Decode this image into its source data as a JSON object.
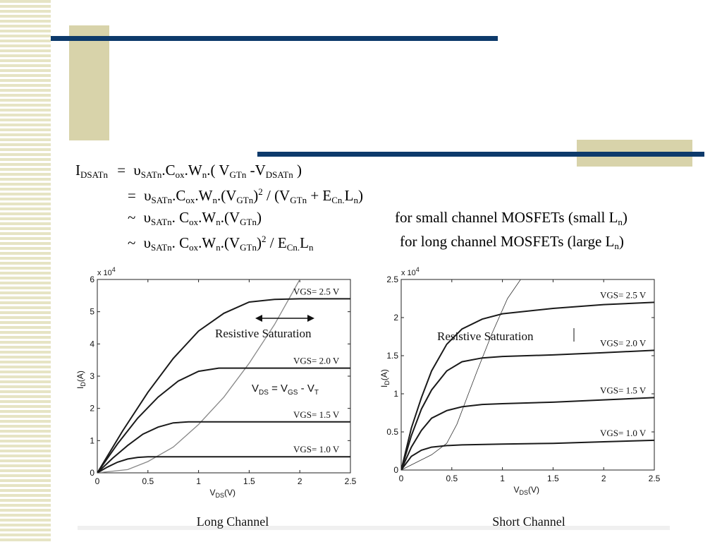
{
  "slide": {
    "formula": {
      "l1": {
        "lhs": "I",
        "lhs_sub": "DSATn",
        "eq": "=",
        "v": "υ",
        "v_sub": "SATn",
        "c": ".C",
        "c_sub": "ox",
        "w": ".W",
        "w_sub": "n",
        "rest1": ".( V",
        "gt_sub": "GTn",
        "rest2": " -V",
        "dsat_sub": "DSATn",
        "rest3": " )"
      },
      "l2": {
        "eq": "=",
        "v": "υ",
        "v_sub": "SATn",
        "c": ".C",
        "c_sub": "ox",
        "w": ".W",
        "w_sub": "n",
        "rest1": ".(V",
        "gt_sub": "GTn",
        "rest2": ")",
        "sup": "2",
        "rest3": " / (V",
        "gt2_sub": "GTn",
        "rest4": " + E",
        "e_sub": "Cn.",
        "rest5": "L",
        "l_sub": "n",
        "rest6": ")"
      },
      "l3": {
        "eq": "~",
        "v": "υ",
        "v_sub": "SATn",
        "c": ". C",
        "c_sub": "ox",
        "w": ".W",
        "w_sub": "n",
        "rest1": ".(V",
        "gt_sub": "GTn",
        "rest2": ")",
        "note": "for small channel MOSFETs (small L",
        "note_sub": "n",
        "note_end": ")"
      },
      "l4": {
        "eq": "~",
        "v": "υ",
        "v_sub": "SATn",
        "c": ". C",
        "c_sub": "ox",
        "w": ".W",
        "w_sub": "n",
        "rest1": ".(V",
        "gt_sub": "GTn",
        "rest2": ")",
        "sup": "2",
        "rest3": " / E",
        "e_sub": "Cn.",
        "rest4": "L",
        "l_sub": "n",
        "note": "for long channel MOSFETs (large L",
        "note_sub": "n",
        "note_end": ")"
      }
    }
  },
  "chart_data": [
    {
      "type": "line",
      "caption": "Long Channel",
      "xlabel": "VDS(V)",
      "ylabel": "ID(A)",
      "y_multiplier": "x 10^4",
      "xlim": [
        0,
        2.5
      ],
      "ylim": [
        0,
        6
      ],
      "xticks": [
        "0",
        "0.5",
        "1",
        "1.5",
        "2",
        "2.5"
      ],
      "yticks": [
        "0",
        "1",
        "2",
        "3",
        "4",
        "5",
        "6"
      ],
      "series": [
        {
          "name": "VGS= 2.5 V",
          "x": [
            0,
            0.25,
            0.5,
            0.75,
            1.0,
            1.25,
            1.5,
            1.75,
            2.0,
            2.5
          ],
          "y": [
            0,
            1.3,
            2.5,
            3.55,
            4.4,
            4.95,
            5.3,
            5.38,
            5.4,
            5.4
          ]
        },
        {
          "name": "VGS= 2.0 V",
          "x": [
            0,
            0.2,
            0.4,
            0.6,
            0.8,
            1.0,
            1.2,
            1.5,
            2.0,
            2.5
          ],
          "y": [
            0,
            0.9,
            1.7,
            2.35,
            2.85,
            3.15,
            3.25,
            3.25,
            3.25,
            3.25
          ]
        },
        {
          "name": "VGS= 1.5 V",
          "x": [
            0,
            0.15,
            0.3,
            0.45,
            0.6,
            0.75,
            0.9,
            1.2,
            2.5
          ],
          "y": [
            0,
            0.45,
            0.85,
            1.2,
            1.42,
            1.55,
            1.58,
            1.58,
            1.58
          ]
        },
        {
          "name": "VGS= 1.0 V",
          "x": [
            0,
            0.1,
            0.2,
            0.3,
            0.4,
            0.5,
            0.6,
            2.5
          ],
          "y": [
            0,
            0.18,
            0.33,
            0.43,
            0.48,
            0.5,
            0.5,
            0.5
          ]
        }
      ],
      "boundary": {
        "x": [
          0,
          0.3,
          0.5,
          0.75,
          1.0,
          1.25,
          1.5,
          1.75,
          2.0
        ],
        "y": [
          0,
          0.1,
          0.35,
          0.8,
          1.5,
          2.35,
          3.4,
          4.6,
          6.0
        ]
      },
      "annotations": {
        "region": "Resistive  Saturation",
        "vds_lhs": "V",
        "vds_lhs_sub": "DS",
        "vds_mid": " = V",
        "vds_mid_sub": "GS",
        "vds_minus": " - V",
        "vds_t_sub": "T"
      }
    },
    {
      "type": "line",
      "caption": "Short Channel",
      "xlabel": "VDS(V)",
      "ylabel": "ID(A)",
      "y_multiplier": "x 10^4",
      "xlim": [
        0,
        2.5
      ],
      "ylim": [
        0,
        2.5
      ],
      "xticks": [
        "0",
        "0.5",
        "1",
        "1.5",
        "2",
        "2.5"
      ],
      "yticks": [
        "0",
        "0.5",
        "1",
        "1.5",
        "2",
        "2.5"
      ],
      "series": [
        {
          "name": "VGS= 2.5 V",
          "x": [
            0,
            0.1,
            0.2,
            0.3,
            0.45,
            0.6,
            0.8,
            1.0,
            1.5,
            2.0,
            2.5
          ],
          "y": [
            0,
            0.55,
            0.95,
            1.3,
            1.65,
            1.85,
            1.98,
            2.05,
            2.12,
            2.17,
            2.2
          ]
        },
        {
          "name": "VGS= 2.0 V",
          "x": [
            0,
            0.1,
            0.2,
            0.3,
            0.45,
            0.6,
            0.8,
            1.0,
            1.5,
            2.0,
            2.5
          ],
          "y": [
            0,
            0.45,
            0.8,
            1.05,
            1.3,
            1.42,
            1.47,
            1.49,
            1.51,
            1.54,
            1.57
          ]
        },
        {
          "name": "VGS= 1.5 V",
          "x": [
            0,
            0.1,
            0.2,
            0.3,
            0.45,
            0.6,
            0.8,
            1.0,
            1.5,
            2.0,
            2.5
          ],
          "y": [
            0,
            0.3,
            0.52,
            0.68,
            0.78,
            0.83,
            0.86,
            0.87,
            0.89,
            0.92,
            0.95
          ]
        },
        {
          "name": "VGS= 1.0 V",
          "x": [
            0,
            0.1,
            0.2,
            0.3,
            0.45,
            0.6,
            1.0,
            1.5,
            2.0,
            2.5
          ],
          "y": [
            0,
            0.18,
            0.26,
            0.3,
            0.32,
            0.33,
            0.34,
            0.35,
            0.37,
            0.39
          ]
        }
      ],
      "boundary": {
        "x": [
          0,
          0.3,
          0.45,
          0.55,
          0.65,
          0.75,
          0.9,
          1.05,
          1.18
        ],
        "y": [
          0,
          0.2,
          0.35,
          0.6,
          0.95,
          1.3,
          1.8,
          2.25,
          2.5
        ]
      },
      "annotations": {
        "region": "Resistive  Saturation"
      }
    }
  ]
}
